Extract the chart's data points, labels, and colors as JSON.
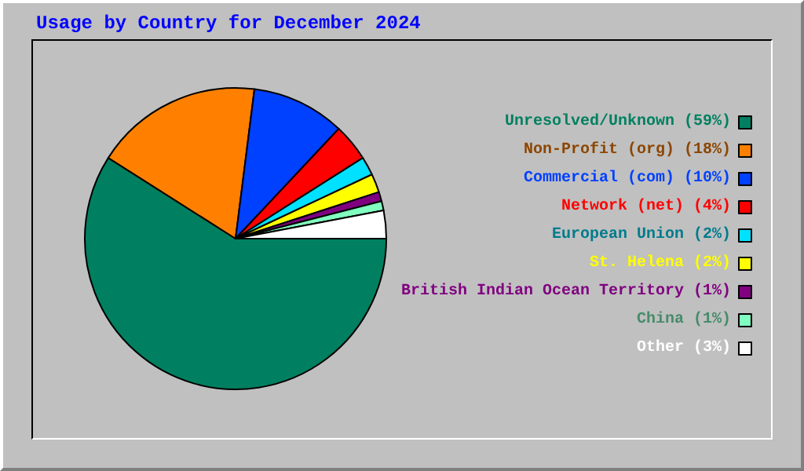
{
  "chart_data": {
    "type": "pie",
    "title": "Usage by Country for December 2024",
    "categories": [
      "Unresolved/Unknown (59%)",
      "Non-Profit (org) (18%)",
      "Commercial (com) (10%)",
      "Network (net) (4%)",
      "European Union (2%)",
      "St. Helena (2%)",
      "British Indian Ocean Territory (1%)",
      "China (1%)",
      "Other (3%)"
    ],
    "values": [
      59,
      18,
      10,
      4,
      2,
      2,
      1,
      1,
      3
    ],
    "colors": [
      "#008060",
      "#ff8000",
      "#0040ff",
      "#ff0000",
      "#00e0ff",
      "#ffff00",
      "#800080",
      "#80ffc0",
      "#ffffff"
    ],
    "legend": "right"
  }
}
